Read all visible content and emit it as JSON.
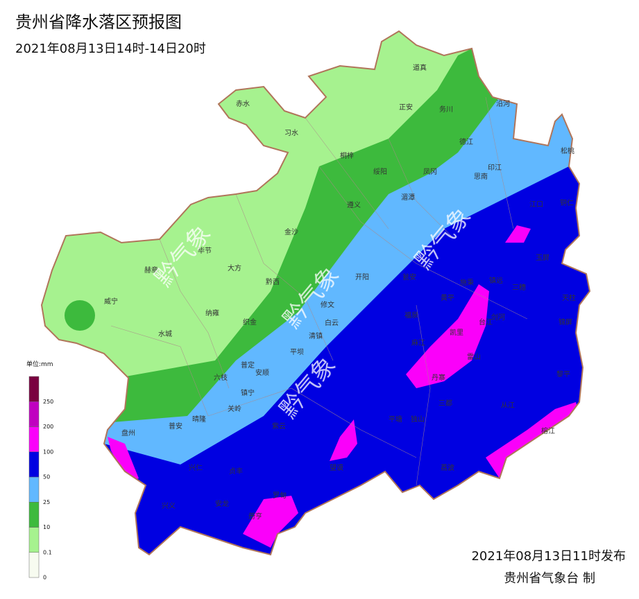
{
  "header": {
    "title": "贵州省降水落区预报图",
    "subtitle": "2021年08月13日14时-14日20时"
  },
  "legend": {
    "unit": "单位:mm",
    "levels": [
      0,
      0.1,
      10,
      25,
      50,
      100,
      200,
      250
    ],
    "colors": [
      "#f7fbf0",
      "#a6f28f",
      "#3dba3d",
      "#61b8ff",
      "#0000e1",
      "#fa00fa",
      "#c000c0",
      "#7a0040"
    ]
  },
  "watermark": "黔气象",
  "places": [
    "道真",
    "赤水",
    "正安",
    "务川",
    "沿河",
    "习水",
    "德江",
    "松桃",
    "桐梓",
    "绥阳",
    "凤冈",
    "印江",
    "思南",
    "湄潭",
    "江口",
    "铜仁",
    "遵义",
    "金沙",
    "毕节",
    "大方",
    "赫章",
    "玉屏",
    "黔西",
    "开阳",
    "瓮安",
    "施秉",
    "镇远",
    "三穗",
    "威宁",
    "修文",
    "黄平",
    "天柱",
    "纳雍",
    "织金",
    "白云",
    "福泉",
    "台江",
    "剑河",
    "锦屏",
    "清镇",
    "水城",
    "麻江",
    "凯里",
    "雷山",
    "平坝",
    "普定",
    "安顺",
    "六枝",
    "丹寨",
    "黎平",
    "镇宁",
    "三都",
    "从江",
    "关岭",
    "独山",
    "平塘",
    "紫云",
    "普安",
    "晴隆",
    "盘州",
    "榕江",
    "望谟",
    "兴仁",
    "贞丰",
    "荔波",
    "兴义",
    "安龙",
    "册亨",
    "罗甸"
  ],
  "footer": {
    "issued": "2021年08月13日11时发布",
    "issuer": "贵州省气象台 制"
  }
}
